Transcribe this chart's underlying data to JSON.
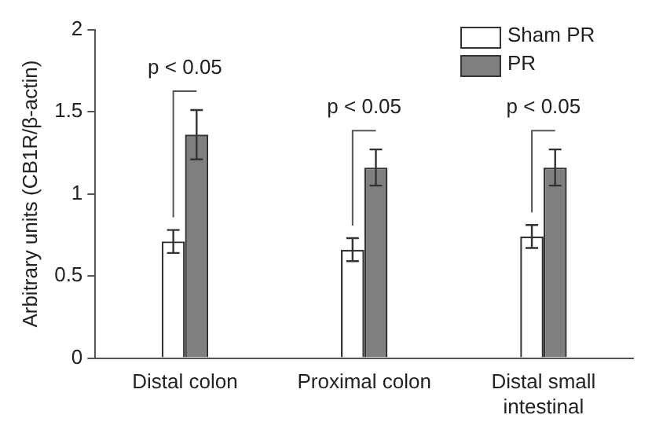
{
  "chart_data": {
    "type": "bar",
    "ylabel": "Arbitrary units (CB1R/β-actin)",
    "categories": [
      "Distal colon",
      "Proximal colon",
      "Distal small intestinal"
    ],
    "series": [
      {
        "name": "Sham PR",
        "color": "#ffffff",
        "values": [
          0.71,
          0.66,
          0.74
        ],
        "errors": [
          0.07,
          0.07,
          0.07
        ]
      },
      {
        "name": "PR",
        "color": "#7f7f7f",
        "values": [
          1.36,
          1.16,
          1.16
        ],
        "errors": [
          0.15,
          0.11,
          0.11
        ]
      }
    ],
    "annotations": [
      "p < 0.05",
      "p < 0.05",
      "p < 0.05"
    ],
    "ylim": [
      0,
      2
    ],
    "yticks": [
      0,
      0.5,
      1,
      1.5,
      2
    ],
    "grid": false,
    "legend": "top right"
  }
}
